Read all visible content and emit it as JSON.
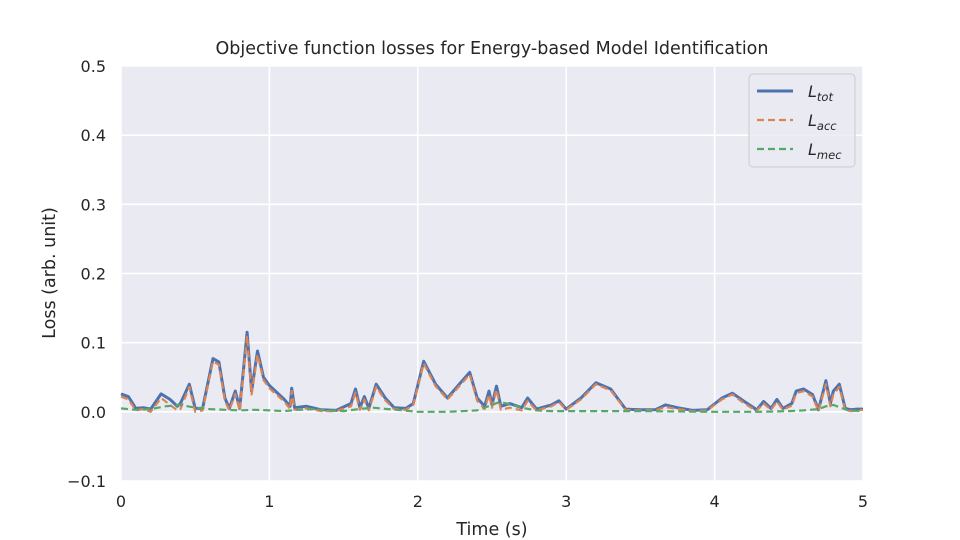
{
  "chart_data": {
    "type": "line",
    "title": "Objective function losses for Energy-based Model Identification",
    "xlabel": "Time (s)",
    "ylabel": "Loss (arb. unit)",
    "xlim": [
      0,
      5
    ],
    "ylim": [
      -0.1,
      0.5
    ],
    "xticks": [
      0,
      1,
      2,
      3,
      4,
      5
    ],
    "xtick_labels": [
      "0",
      "1",
      "2",
      "3",
      "4",
      "5"
    ],
    "yticks": [
      -0.1,
      0.0,
      0.1,
      0.2,
      0.3,
      0.4,
      0.5
    ],
    "ytick_labels": [
      "−0.1",
      "0.0",
      "0.1",
      "0.2",
      "0.3",
      "0.4",
      "0.5"
    ],
    "grid": true,
    "legend_position": "top-right",
    "background_color": "#eaeaf2",
    "grid_color": "#ffffff",
    "series": [
      {
        "name": "L_tot",
        "legend_main": "L",
        "legend_sub": "tot",
        "color": "#4c72b0",
        "dash": "solid",
        "points": [
          [
            0,
            0.026
          ],
          [
            0.05,
            0.022
          ],
          [
            0.1,
            0.005
          ],
          [
            0.15,
            0.006
          ],
          [
            0.2,
            0.004
          ],
          [
            0.27,
            0.026
          ],
          [
            0.33,
            0.018
          ],
          [
            0.38,
            0.008
          ],
          [
            0.4,
            0.012
          ],
          [
            0.46,
            0.04
          ],
          [
            0.5,
            0.005
          ],
          [
            0.55,
            0.005
          ],
          [
            0.62,
            0.077
          ],
          [
            0.66,
            0.072
          ],
          [
            0.7,
            0.02
          ],
          [
            0.73,
            0.005
          ],
          [
            0.77,
            0.03
          ],
          [
            0.8,
            0.005
          ],
          [
            0.85,
            0.115
          ],
          [
            0.88,
            0.03
          ],
          [
            0.92,
            0.088
          ],
          [
            0.96,
            0.05
          ],
          [
            1.0,
            0.038
          ],
          [
            1.1,
            0.018
          ],
          [
            1.14,
            0.008
          ],
          [
            1.15,
            0.034
          ],
          [
            1.17,
            0.006
          ],
          [
            1.25,
            0.008
          ],
          [
            1.35,
            0.003
          ],
          [
            1.45,
            0.002
          ],
          [
            1.55,
            0.012
          ],
          [
            1.58,
            0.033
          ],
          [
            1.61,
            0.006
          ],
          [
            1.64,
            0.022
          ],
          [
            1.67,
            0.005
          ],
          [
            1.72,
            0.04
          ],
          [
            1.78,
            0.02
          ],
          [
            1.84,
            0.006
          ],
          [
            1.92,
            0.005
          ],
          [
            1.97,
            0.012
          ],
          [
            2.04,
            0.073
          ],
          [
            2.12,
            0.04
          ],
          [
            2.2,
            0.02
          ],
          [
            2.3,
            0.045
          ],
          [
            2.35,
            0.057
          ],
          [
            2.4,
            0.02
          ],
          [
            2.45,
            0.008
          ],
          [
            2.48,
            0.03
          ],
          [
            2.5,
            0.01
          ],
          [
            2.53,
            0.037
          ],
          [
            2.56,
            0.008
          ],
          [
            2.62,
            0.012
          ],
          [
            2.7,
            0.006
          ],
          [
            2.74,
            0.02
          ],
          [
            2.8,
            0.004
          ],
          [
            2.9,
            0.01
          ],
          [
            2.95,
            0.016
          ],
          [
            3.0,
            0.004
          ],
          [
            3.1,
            0.02
          ],
          [
            3.2,
            0.042
          ],
          [
            3.3,
            0.033
          ],
          [
            3.4,
            0.004
          ],
          [
            3.5,
            0.003
          ],
          [
            3.6,
            0.003
          ],
          [
            3.67,
            0.01
          ],
          [
            3.75,
            0.006
          ],
          [
            3.85,
            0.002
          ],
          [
            3.95,
            0.003
          ],
          [
            4.05,
            0.02
          ],
          [
            4.12,
            0.027
          ],
          [
            4.2,
            0.015
          ],
          [
            4.27,
            0.005
          ],
          [
            4.28,
            0.002
          ],
          [
            4.33,
            0.015
          ],
          [
            4.38,
            0.005
          ],
          [
            4.42,
            0.018
          ],
          [
            4.46,
            0.005
          ],
          [
            4.52,
            0.012
          ],
          [
            4.55,
            0.03
          ],
          [
            4.6,
            0.033
          ],
          [
            4.66,
            0.025
          ],
          [
            4.7,
            0.003
          ],
          [
            4.75,
            0.045
          ],
          [
            4.78,
            0.012
          ],
          [
            4.8,
            0.03
          ],
          [
            4.84,
            0.04
          ],
          [
            4.88,
            0.005
          ],
          [
            4.92,
            0.003
          ],
          [
            4.96,
            0.004
          ],
          [
            5.0,
            0.004
          ]
        ]
      },
      {
        "name": "L_acc",
        "legend_main": "L",
        "legend_sub": "acc",
        "color": "#dd8452",
        "dash": "dashed",
        "points": [
          [
            0,
            0.022
          ],
          [
            0.05,
            0.018
          ],
          [
            0.1,
            0.002
          ],
          [
            0.15,
            0.004
          ],
          [
            0.2,
            0.0
          ],
          [
            0.27,
            0.02
          ],
          [
            0.33,
            0.01
          ],
          [
            0.38,
            0.002
          ],
          [
            0.4,
            0.004
          ],
          [
            0.46,
            0.036
          ],
          [
            0.5,
            0.0
          ],
          [
            0.55,
            0.002
          ],
          [
            0.62,
            0.073
          ],
          [
            0.66,
            0.068
          ],
          [
            0.7,
            0.016
          ],
          [
            0.73,
            0.002
          ],
          [
            0.77,
            0.026
          ],
          [
            0.8,
            0.002
          ],
          [
            0.85,
            0.11
          ],
          [
            0.88,
            0.025
          ],
          [
            0.92,
            0.083
          ],
          [
            0.96,
            0.046
          ],
          [
            1.0,
            0.034
          ],
          [
            1.1,
            0.015
          ],
          [
            1.14,
            0.004
          ],
          [
            1.15,
            0.03
          ],
          [
            1.17,
            0.003
          ],
          [
            1.25,
            0.005
          ],
          [
            1.35,
            0.001
          ],
          [
            1.45,
            0.001
          ],
          [
            1.55,
            0.008
          ],
          [
            1.58,
            0.028
          ],
          [
            1.61,
            0.003
          ],
          [
            1.64,
            0.018
          ],
          [
            1.67,
            0.002
          ],
          [
            1.72,
            0.036
          ],
          [
            1.78,
            0.017
          ],
          [
            1.84,
            0.004
          ],
          [
            1.92,
            0.003
          ],
          [
            1.97,
            0.01
          ],
          [
            2.04,
            0.07
          ],
          [
            2.12,
            0.037
          ],
          [
            2.2,
            0.018
          ],
          [
            2.3,
            0.042
          ],
          [
            2.35,
            0.054
          ],
          [
            2.4,
            0.016
          ],
          [
            2.45,
            0.004
          ],
          [
            2.48,
            0.025
          ],
          [
            2.5,
            0.006
          ],
          [
            2.53,
            0.032
          ],
          [
            2.56,
            0.003
          ],
          [
            2.62,
            0.006
          ],
          [
            2.7,
            0.002
          ],
          [
            2.74,
            0.016
          ],
          [
            2.8,
            0.002
          ],
          [
            2.9,
            0.008
          ],
          [
            2.95,
            0.014
          ],
          [
            3.0,
            0.003
          ],
          [
            3.1,
            0.018
          ],
          [
            3.2,
            0.04
          ],
          [
            3.3,
            0.031
          ],
          [
            3.4,
            0.003
          ],
          [
            3.5,
            0.002
          ],
          [
            3.6,
            0.002
          ],
          [
            3.67,
            0.007
          ],
          [
            3.75,
            0.004
          ],
          [
            3.85,
            0.001
          ],
          [
            3.95,
            0.002
          ],
          [
            4.05,
            0.018
          ],
          [
            4.12,
            0.025
          ],
          [
            4.2,
            0.012
          ],
          [
            4.27,
            0.003
          ],
          [
            4.28,
            0.001
          ],
          [
            4.33,
            0.012
          ],
          [
            4.38,
            0.003
          ],
          [
            4.42,
            0.015
          ],
          [
            4.46,
            0.003
          ],
          [
            4.52,
            0.009
          ],
          [
            4.55,
            0.027
          ],
          [
            4.6,
            0.03
          ],
          [
            4.66,
            0.022
          ],
          [
            4.7,
            0.001
          ],
          [
            4.75,
            0.04
          ],
          [
            4.78,
            0.008
          ],
          [
            4.8,
            0.025
          ],
          [
            4.84,
            0.036
          ],
          [
            4.88,
            0.002
          ],
          [
            4.92,
            0.001
          ],
          [
            4.96,
            0.002
          ],
          [
            5.0,
            0.003
          ]
        ]
      },
      {
        "name": "L_mec",
        "legend_main": "L",
        "legend_sub": "mec",
        "color": "#55a868",
        "dash": "dashed",
        "points": [
          [
            0,
            0.005
          ],
          [
            0.1,
            0.003
          ],
          [
            0.2,
            0.004
          ],
          [
            0.3,
            0.008
          ],
          [
            0.4,
            0.01
          ],
          [
            0.5,
            0.006
          ],
          [
            0.6,
            0.004
          ],
          [
            0.7,
            0.003
          ],
          [
            0.8,
            0.002
          ],
          [
            0.9,
            0.003
          ],
          [
            1.0,
            0.002
          ],
          [
            1.1,
            0.001
          ],
          [
            1.2,
            0.003
          ],
          [
            1.3,
            0.004
          ],
          [
            1.4,
            0.002
          ],
          [
            1.5,
            0.001
          ],
          [
            1.6,
            0.004
          ],
          [
            1.7,
            0.006
          ],
          [
            1.8,
            0.004
          ],
          [
            1.9,
            0.002
          ],
          [
            2.0,
            0.0
          ],
          [
            2.2,
            0.0
          ],
          [
            2.4,
            0.002
          ],
          [
            2.5,
            0.01
          ],
          [
            2.55,
            0.014
          ],
          [
            2.6,
            0.012
          ],
          [
            2.7,
            0.006
          ],
          [
            2.8,
            0.002
          ],
          [
            2.9,
            0.001
          ],
          [
            3.0,
            0.001
          ],
          [
            3.5,
            0.001
          ],
          [
            4.0,
            0.0
          ],
          [
            4.3,
            0.0
          ],
          [
            4.5,
            0.001
          ],
          [
            4.6,
            0.002
          ],
          [
            4.7,
            0.004
          ],
          [
            4.75,
            0.008
          ],
          [
            4.8,
            0.01
          ],
          [
            4.85,
            0.006
          ],
          [
            4.9,
            0.002
          ],
          [
            5.0,
            0.001
          ]
        ]
      }
    ]
  }
}
